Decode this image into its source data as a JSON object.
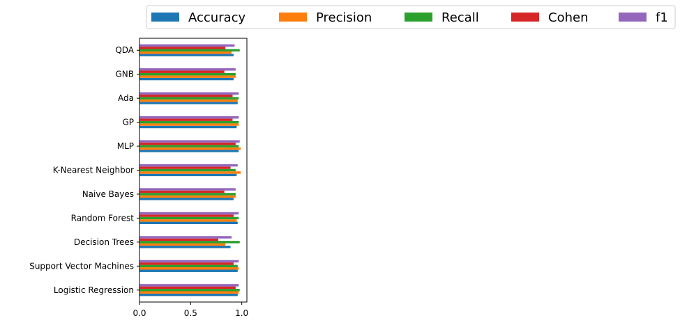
{
  "chart_data": {
    "type": "bar",
    "orientation": "horizontal",
    "categories": [
      "Logistic Regression",
      "Support Vector Machines",
      "Decision Trees",
      "Random Forest",
      "Naive Bayes",
      "K-Nearest Neighbor",
      "MLP",
      "GP",
      "Ada",
      "GNB",
      "QDA"
    ],
    "series": [
      {
        "name": "Accuracy",
        "color": "#1f77b4",
        "values": [
          0.96,
          0.96,
          0.89,
          0.96,
          0.92,
          0.95,
          0.97,
          0.95,
          0.96,
          0.92,
          0.92
        ]
      },
      {
        "name": "Precision",
        "color": "#ff7f0e",
        "values": [
          0.97,
          0.97,
          0.84,
          0.95,
          0.94,
          0.99,
          0.99,
          0.97,
          0.96,
          0.94,
          0.9
        ]
      },
      {
        "name": "Recall",
        "color": "#2ca02c",
        "values": [
          0.98,
          0.96,
          0.98,
          0.97,
          0.94,
          0.94,
          0.97,
          0.97,
          0.97,
          0.94,
          0.98
        ]
      },
      {
        "name": "Cohen",
        "color": "#d62728",
        "values": [
          0.94,
          0.92,
          0.77,
          0.92,
          0.83,
          0.89,
          0.94,
          0.91,
          0.91,
          0.83,
          0.84
        ]
      },
      {
        "name": "f1",
        "color": "#9467bd",
        "values": [
          0.97,
          0.97,
          0.9,
          0.97,
          0.94,
          0.96,
          0.98,
          0.97,
          0.97,
          0.94,
          0.93
        ]
      }
    ],
    "xticks": [
      "0.0",
      "0.5",
      "1.0"
    ],
    "xlim": [
      0,
      1.05
    ],
    "xlabel": "",
    "ylabel": "",
    "title": "",
    "legend_position": "top",
    "grid": false
  }
}
